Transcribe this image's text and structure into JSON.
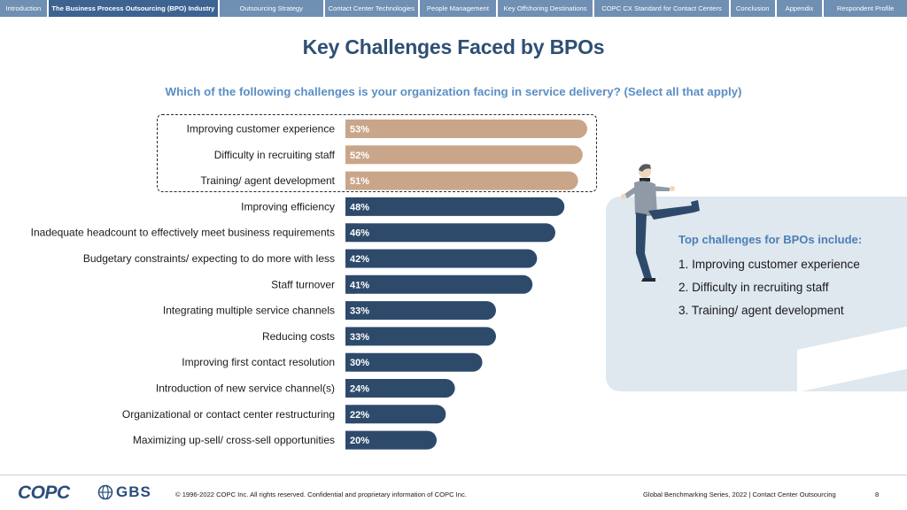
{
  "nav": {
    "tabs": [
      {
        "label": "Introduction",
        "active": false
      },
      {
        "label": "The Business Process Outsourcing (BPO) Industry",
        "active": true
      },
      {
        "label": "Outsourcing Strategy",
        "active": false
      },
      {
        "label": "Contact Center Technologies",
        "active": false
      },
      {
        "label": "People Management",
        "active": false
      },
      {
        "label": "Key Offshoring Destinations",
        "active": false
      },
      {
        "label": "COPC CX Standard for Contact Centers",
        "active": false
      },
      {
        "label": "Conclusion",
        "active": false
      },
      {
        "label": "Appendix",
        "active": false
      },
      {
        "label": "Respondent Profile",
        "active": false
      }
    ]
  },
  "page": {
    "title": "Key Challenges Faced by BPOs",
    "subtitle": "Which of the following challenges is your organization facing in service delivery? (Select all that apply)"
  },
  "chart_data": {
    "type": "bar",
    "orientation": "horizontal",
    "categories": [
      "Improving customer experience",
      "Difficulty in recruiting staff",
      "Training/ agent development",
      "Improving efficiency",
      "Inadequate headcount to effectively meet business requirements",
      "Budgetary constraints/ expecting to do more with less",
      "Staff turnover",
      "Integrating multiple service channels",
      "Reducing costs",
      "Improving first contact resolution",
      "Introduction of new service channel(s)",
      "Organizational or contact center restructuring",
      "Maximizing up-sell/ cross-sell opportunities"
    ],
    "values": [
      53,
      52,
      51,
      48,
      46,
      42,
      41,
      33,
      33,
      30,
      24,
      22,
      20
    ],
    "value_labels": [
      "53%",
      "52%",
      "51%",
      "48%",
      "46%",
      "42%",
      "41%",
      "33%",
      "33%",
      "30%",
      "24%",
      "22%",
      "20%"
    ],
    "highlighted_count": 3,
    "colors": {
      "highlight": "#c9a68a",
      "default": "#2e4a6b",
      "label_text": "#ffffff"
    },
    "xlim": [
      0,
      53
    ],
    "grid": false,
    "legend": "none"
  },
  "panel": {
    "heading": "Top challenges for BPOs include:",
    "items": [
      "1.  Improving customer experience",
      "2.  Difficulty in recruiting staff",
      "3.  Training/ agent development"
    ]
  },
  "footer": {
    "logo_copc": "COPC",
    "logo_gbs": "GBS",
    "copyright": "© 1996-2022 COPC Inc. All rights reserved. Confidential and proprietary information of COPC Inc.",
    "series": "Global Benchmarking Series, 2022  |  Contact Center Outsourcing",
    "page_number": "8"
  }
}
